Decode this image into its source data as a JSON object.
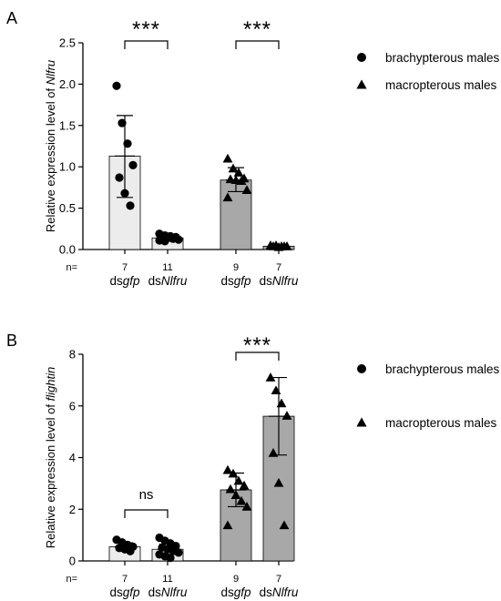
{
  "chart_data": [
    {
      "panel_label": "A",
      "type": "bar",
      "ylabel": {
        "prefix": "Relative expression level of ",
        "italic": "Nlfru"
      },
      "ylim": [
        0,
        2.5
      ],
      "yticks": [
        "0.0",
        "0.5",
        "1.0",
        "1.5",
        "2.0",
        "2.5"
      ],
      "n_prefix": "n=",
      "groups": [
        {
          "label": {
            "prefix": "ds",
            "italic": "gfp"
          },
          "n": "7",
          "mean": 1.13,
          "sd_low": 0.63,
          "sd_high": 1.62,
          "color": "#ececec",
          "marker": "circle",
          "points": [
            1.98,
            1.53,
            1.28,
            1.02,
            0.87,
            0.68,
            0.53
          ]
        },
        {
          "label": {
            "prefix": "ds",
            "italic": "Nlfru"
          },
          "n": "11",
          "mean": 0.14,
          "sd_low": 0.1,
          "sd_high": 0.18,
          "color": "#ececec",
          "marker": "circle",
          "points": [
            0.19,
            0.17,
            0.16,
            0.15,
            0.15,
            0.14,
            0.13,
            0.12,
            0.11,
            0.1,
            0.16
          ]
        },
        {
          "label": {
            "prefix": "ds",
            "italic": "gfp"
          },
          "n": "9",
          "mean": 0.84,
          "sd_low": 0.7,
          "sd_high": 0.99,
          "color": "#a8a8a8",
          "marker": "triangle",
          "points": [
            1.1,
            0.98,
            0.93,
            0.86,
            0.85,
            0.84,
            0.83,
            0.72,
            0.63
          ]
        },
        {
          "label": {
            "prefix": "ds",
            "italic": "Nlfru"
          },
          "n": "7",
          "mean": 0.04,
          "sd_low": 0.03,
          "sd_high": 0.05,
          "color": "#a8a8a8",
          "marker": "triangle",
          "points": [
            0.05,
            0.05,
            0.04,
            0.04,
            0.04,
            0.03,
            0.04
          ]
        }
      ],
      "significance": [
        {
          "pair": [
            0,
            1
          ],
          "label": "***"
        },
        {
          "pair": [
            2,
            3
          ],
          "label": "***"
        }
      ],
      "legend": [
        {
          "marker": "circle",
          "label": "brachypterous males"
        },
        {
          "marker": "triangle",
          "label": "macropterous males"
        }
      ]
    },
    {
      "panel_label": "B",
      "type": "bar",
      "ylabel": {
        "prefix": "Relative expression level of ",
        "italic": "flightin"
      },
      "ylim": [
        0,
        8
      ],
      "yticks": [
        "0",
        "2",
        "4",
        "6",
        "8"
      ],
      "n_prefix": "n=",
      "groups": [
        {
          "label": {
            "prefix": "ds",
            "italic": "gfp"
          },
          "n": "7",
          "mean": 0.55,
          "sd_low": 0.4,
          "sd_high": 0.7,
          "color": "#ececec",
          "marker": "circle",
          "points": [
            0.82,
            0.72,
            0.62,
            0.55,
            0.5,
            0.45,
            0.38
          ]
        },
        {
          "label": {
            "prefix": "ds",
            "italic": "Nlfru"
          },
          "n": "11",
          "mean": 0.45,
          "sd_low": 0.25,
          "sd_high": 0.65,
          "color": "#ececec",
          "marker": "circle",
          "points": [
            0.9,
            0.78,
            0.68,
            0.58,
            0.52,
            0.45,
            0.4,
            0.32,
            0.25,
            0.18,
            0.12
          ]
        },
        {
          "label": {
            "prefix": "ds",
            "italic": "gfp"
          },
          "n": "9",
          "mean": 2.75,
          "sd_low": 2.1,
          "sd_high": 3.4,
          "color": "#a8a8a8",
          "marker": "triangle",
          "points": [
            3.52,
            3.38,
            3.1,
            2.92,
            2.78,
            2.55,
            2.32,
            2.1,
            1.38
          ]
        },
        {
          "label": {
            "prefix": "ds",
            "italic": "Nlfru"
          },
          "n": "7",
          "mean": 5.6,
          "sd_low": 4.1,
          "sd_high": 7.1,
          "color": "#a8a8a8",
          "marker": "triangle",
          "points": [
            7.1,
            6.6,
            6.1,
            5.62,
            4.18,
            3.02,
            1.38
          ]
        }
      ],
      "significance": [
        {
          "pair": [
            0,
            1
          ],
          "label": "ns"
        },
        {
          "pair": [
            2,
            3
          ],
          "label": "***"
        }
      ],
      "legend": [
        {
          "marker": "circle",
          "label": "brachypterous males"
        },
        {
          "marker": "triangle",
          "label": "macropterous males"
        }
      ]
    }
  ]
}
